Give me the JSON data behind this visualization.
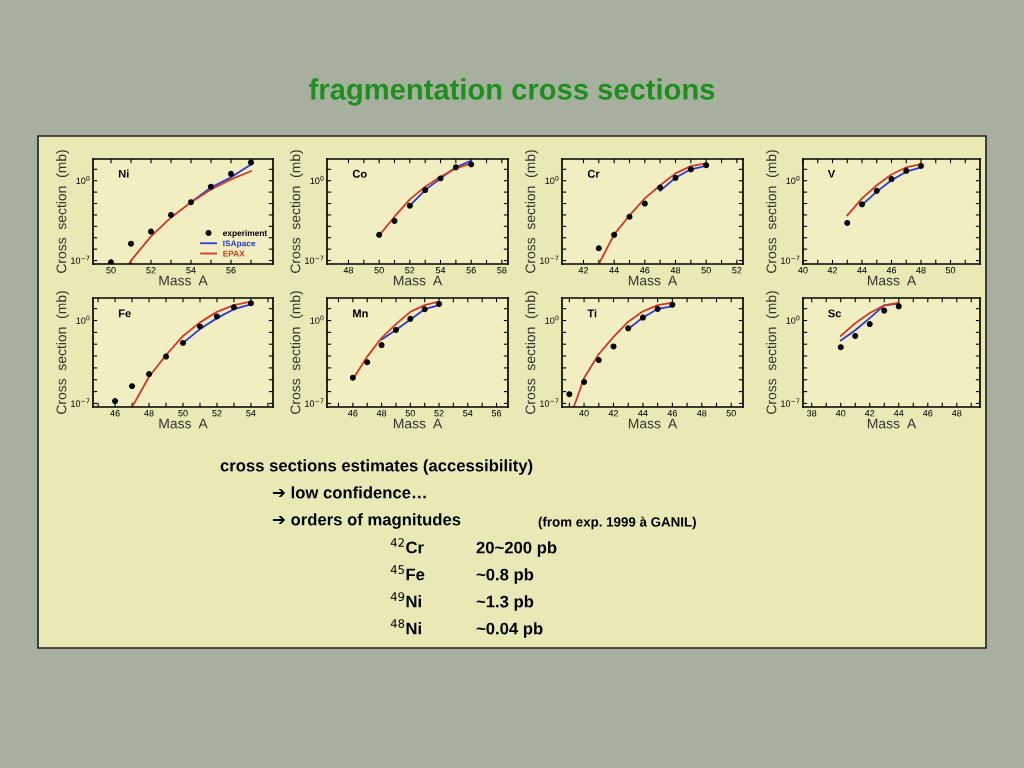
{
  "chart_data": [
    {
      "type": "line",
      "title": "Ni",
      "xlabel": "Mass  A",
      "ylabel": "Cross  section  (mb)",
      "log": "y",
      "legend": "bottom right",
      "xlim": [
        49.1,
        58.1
      ],
      "ylim": [
        5e-08,
        80
      ],
      "xticks": [
        50,
        {
          "value": 51,
          "label": null
        },
        52,
        {
          "value": 53,
          "label": null
        },
        54,
        {
          "value": 55,
          "label": null
        },
        56,
        {
          "value": 57,
          "label": null
        }
      ],
      "yticks": [
        {
          "value": 1e-07,
          "label": "10$^{−7}$"
        },
        {
          "value": 1e-06,
          "label": null
        },
        {
          "value": 1e-05,
          "label": null
        },
        {
          "value": 0.0001,
          "label": null
        },
        {
          "value": 0.001,
          "label": null
        },
        {
          "value": 0.01,
          "label": null
        },
        {
          "value": 0.1,
          "label": null
        },
        {
          "value": 1,
          "label": "10$^{0}$"
        },
        {
          "value": 10,
          "label": null
        }
      ],
      "series": [
        {
          "name": "experiment",
          "type": "scatter",
          "marker": "circle",
          "color": "#000000",
          "x": [
            50,
            51,
            52,
            53,
            54,
            55,
            56,
            57
          ],
          "values": [
            7e-08,
            3e-06,
            3.5e-05,
            0.001,
            0.013,
            0.3,
            4,
            40
          ]
        },
        {
          "name": "ISApace",
          "type": "line",
          "color": "#2a3bd0",
          "x": [
            54,
            55,
            56,
            57
          ],
          "values": [
            0.013,
            0.25,
            2,
            27
          ]
        },
        {
          "name": "EPAX",
          "type": "line",
          "color": "#d03a28",
          "x": [
            50.9,
            51,
            52,
            53,
            54,
            55,
            56,
            57
          ],
          "values": [
            5e-08,
            1e-07,
            1.3e-05,
            0.0006,
            0.013,
            0.17,
            1.3,
            7
          ]
        }
      ]
    },
    {
      "type": "line",
      "title": "Co",
      "xlabel": "Mass  A",
      "ylabel": "Cross  section  (mb)",
      "log": "y",
      "xlim": [
        46.6,
        58.4
      ],
      "ylim": [
        5e-08,
        80
      ],
      "xticks": [
        48,
        {
          "value": 49,
          "label": null
        },
        50,
        {
          "value": 51,
          "label": null
        },
        52,
        {
          "value": 53,
          "label": null
        },
        54,
        {
          "value": 55,
          "label": null
        },
        56,
        {
          "value": 57,
          "label": null
        },
        58
      ],
      "yticks": [
        {
          "value": 1e-07,
          "label": "10$^{−7}$"
        },
        {
          "value": 1e-06,
          "label": null
        },
        {
          "value": 1e-05,
          "label": null
        },
        {
          "value": 0.0001,
          "label": null
        },
        {
          "value": 0.001,
          "label": null
        },
        {
          "value": 0.01,
          "label": null
        },
        {
          "value": 0.1,
          "label": null
        },
        {
          "value": 1,
          "label": "10$^{0}$"
        },
        {
          "value": 10,
          "label": null
        }
      ],
      "series": [
        {
          "type": "scatter",
          "marker": "circle",
          "color": "#000000",
          "x": [
            50,
            51,
            52,
            53,
            54,
            55,
            56
          ],
          "values": [
            1.8e-05,
            0.0003,
            0.0065,
            0.15,
            1.6,
            15,
            27
          ]
        },
        {
          "type": "line",
          "color": "#2a3bd0",
          "x": [
            52,
            53,
            54,
            55,
            56
          ],
          "values": [
            0.0065,
            0.15,
            1.6,
            15,
            56
          ]
        },
        {
          "type": "line",
          "color": "#d03a28",
          "x": [
            50,
            51,
            52,
            53,
            54,
            55,
            56
          ],
          "values": [
            1.6e-05,
            0.0007,
            0.023,
            0.3,
            2.2,
            12,
            33
          ]
        }
      ]
    },
    {
      "type": "line",
      "title": "Cr",
      "xlabel": "Mass  A",
      "ylabel": "Cross  section  (mb)",
      "log": "y",
      "xlim": [
        40.6,
        52.4
      ],
      "ylim": [
        5e-08,
        80
      ],
      "xticks": [
        42,
        {
          "value": 43,
          "label": null
        },
        44,
        {
          "value": 45,
          "label": null
        },
        46,
        {
          "value": 47,
          "label": null
        },
        48,
        {
          "value": 49,
          "label": null
        },
        50,
        {
          "value": 51,
          "label": null
        },
        52
      ],
      "yticks": [
        {
          "value": 1e-07,
          "label": "10$^{−7}$"
        },
        {
          "value": 1e-06,
          "label": null
        },
        {
          "value": 1e-05,
          "label": null
        },
        {
          "value": 0.0001,
          "label": null
        },
        {
          "value": 0.001,
          "label": null
        },
        {
          "value": 0.01,
          "label": null
        },
        {
          "value": 0.1,
          "label": null
        },
        {
          "value": 1,
          "label": "10$^{0}$"
        },
        {
          "value": 10,
          "label": null
        }
      ],
      "series": [
        {
          "type": "scatter",
          "marker": "circle",
          "color": "#000000",
          "x": [
            43,
            44,
            45,
            46,
            47,
            48,
            49,
            50
          ],
          "values": [
            1.2e-06,
            1.8e-05,
            0.0007,
            0.01,
            0.25,
            1.8,
            10,
            23
          ]
        },
        {
          "type": "line",
          "color": "#2a3bd0",
          "x": [
            47,
            48,
            49,
            50
          ],
          "values": [
            0.13,
            1.8,
            10,
            20
          ]
        },
        {
          "type": "line",
          "color": "#d03a28",
          "x": [
            43,
            44,
            45,
            46,
            47,
            48,
            49,
            50
          ],
          "values": [
            5e-08,
            2e-05,
            0.0009,
            0.028,
            0.4,
            4.4,
            19,
            33
          ]
        }
      ]
    },
    {
      "type": "line",
      "title": "V",
      "xlabel": "Mass  A",
      "ylabel": "Cross  section  (mb)",
      "log": "y",
      "xlim": [
        40,
        52
      ],
      "ylim": [
        5e-08,
        80
      ],
      "xticks": [
        40,
        {
          "value": 41,
          "label": null
        },
        42,
        {
          "value": 43,
          "label": null
        },
        44,
        {
          "value": 45,
          "label": null
        },
        46,
        {
          "value": 47,
          "label": null
        },
        48,
        {
          "value": 49,
          "label": null
        },
        50,
        {
          "value": 51,
          "label": null
        }
      ],
      "yticks": [
        {
          "value": 1e-07,
          "label": "10$^{−7}$"
        },
        {
          "value": 1e-06,
          "label": null
        },
        {
          "value": 1e-05,
          "label": null
        },
        {
          "value": 0.0001,
          "label": null
        },
        {
          "value": 0.001,
          "label": null
        },
        {
          "value": 0.01,
          "label": null
        },
        {
          "value": 0.1,
          "label": null
        },
        {
          "value": 1,
          "label": "10$^{0}$"
        },
        {
          "value": 10,
          "label": null
        }
      ],
      "series": [
        {
          "type": "scatter",
          "marker": "circle",
          "color": "#000000",
          "x": [
            43,
            44,
            45,
            46,
            47,
            48
          ],
          "values": [
            0.0002,
            0.0085,
            0.13,
            1.4,
            7.4,
            20
          ]
        },
        {
          "type": "line",
          "color": "#2a3bd0",
          "x": [
            44,
            45,
            46,
            47,
            48
          ],
          "values": [
            0.0074,
            0.11,
            1.1,
            6.2,
            15
          ]
        },
        {
          "type": "line",
          "color": "#d03a28",
          "x": [
            43,
            44,
            45,
            46,
            47,
            48
          ],
          "values": [
            0.0009,
            0.028,
            0.4,
            3.5,
            15,
            29
          ]
        }
      ]
    },
    {
      "type": "line",
      "title": "Fe",
      "xlabel": "Mass  A",
      "ylabel": "Cross  section  (mb)",
      "log": "y",
      "xlim": [
        44.7,
        55.3
      ],
      "ylim": [
        5e-08,
        80
      ],
      "xticks": [
        {
          "value": 45,
          "label": null
        },
        46,
        {
          "value": 47,
          "label": null
        },
        48,
        {
          "value": 49,
          "label": null
        },
        50,
        {
          "value": 51,
          "label": null
        },
        52,
        {
          "value": 53,
          "label": null
        },
        54,
        {
          "value": 55,
          "label": null
        }
      ],
      "yticks": [
        {
          "value": 1e-07,
          "label": "10$^{−7}$"
        },
        {
          "value": 1e-06,
          "label": null
        },
        {
          "value": 1e-05,
          "label": null
        },
        {
          "value": 0.0001,
          "label": null
        },
        {
          "value": 0.001,
          "label": null
        },
        {
          "value": 0.01,
          "label": null
        },
        {
          "value": 0.1,
          "label": null
        },
        {
          "value": 1,
          "label": "10$^{0}$"
        },
        {
          "value": 10,
          "label": null
        }
      ],
      "series": [
        {
          "type": "scatter",
          "marker": "circle",
          "color": "#000000",
          "x": [
            46,
            47,
            48,
            49,
            50,
            51,
            52,
            53,
            54
          ],
          "values": [
            1.6e-07,
            2.9e-06,
            3e-05,
            0.0009,
            0.013,
            0.32,
            2.2,
            13,
            29
          ]
        },
        {
          "type": "line",
          "color": "#2a3bd0",
          "x": [
            50,
            51,
            52,
            53,
            54
          ],
          "values": [
            0.013,
            0.19,
            1.6,
            9,
            23
          ]
        },
        {
          "type": "line",
          "color": "#d03a28",
          "x": [
            47,
            48,
            49,
            50,
            51,
            52,
            53,
            54
          ],
          "values": [
            5e-08,
            1.8e-05,
            0.0012,
            0.05,
            0.7,
            5.4,
            20,
            40
          ]
        }
      ]
    },
    {
      "type": "line",
      "title": "Mn",
      "xlabel": "Mass  A",
      "ylabel": "Cross  section  (mb)",
      "log": "y",
      "xlim": [
        44.2,
        56.8
      ],
      "ylim": [
        5e-08,
        80
      ],
      "xticks": [
        {
          "value": 45,
          "label": null
        },
        46,
        {
          "value": 47,
          "label": null
        },
        48,
        {
          "value": 49,
          "label": null
        },
        50,
        {
          "value": 51,
          "label": null
        },
        52,
        {
          "value": 53,
          "label": null
        },
        54,
        {
          "value": 55,
          "label": null
        },
        56
      ],
      "yticks": [
        {
          "value": 1e-07,
          "label": "10$^{−7}$"
        },
        {
          "value": 1e-06,
          "label": null
        },
        {
          "value": 1e-05,
          "label": null
        },
        {
          "value": 0.0001,
          "label": null
        },
        {
          "value": 0.001,
          "label": null
        },
        {
          "value": 0.01,
          "label": null
        },
        {
          "value": 0.1,
          "label": null
        },
        {
          "value": 1,
          "label": "10$^{0}$"
        },
        {
          "value": 10,
          "label": null
        }
      ],
      "series": [
        {
          "type": "scatter",
          "marker": "circle",
          "color": "#000000",
          "x": [
            46,
            47,
            48,
            49,
            50,
            51,
            52
          ],
          "values": [
            1.5e-05,
            0.0003,
            0.0085,
            0.16,
            1.4,
            9,
            25
          ]
        },
        {
          "type": "line",
          "color": "#2a3bd0",
          "x": [
            48,
            49,
            50,
            51,
            52
          ],
          "values": [
            0.025,
            0.16,
            1.2,
            9,
            20
          ]
        },
        {
          "type": "line",
          "color": "#d03a28",
          "x": [
            46,
            47,
            48,
            49,
            50,
            51,
            52
          ],
          "values": [
            1.1e-05,
            0.0009,
            0.035,
            0.5,
            5.4,
            20,
            40
          ]
        }
      ]
    },
    {
      "type": "line",
      "title": "Ti",
      "xlabel": "Mass  A",
      "ylabel": "Cross  section  (mb)",
      "log": "y",
      "xlim": [
        38.5,
        50.8
      ],
      "ylim": [
        5e-08,
        80
      ],
      "xticks": [
        {
          "value": 39,
          "label": null
        },
        40,
        {
          "value": 41,
          "label": null
        },
        42,
        {
          "value": 43,
          "label": null
        },
        44,
        {
          "value": 45,
          "label": null
        },
        46,
        {
          "value": 47,
          "label": null
        },
        48,
        {
          "value": 49,
          "label": null
        },
        50
      ],
      "yticks": [
        {
          "value": 1e-07,
          "label": "10$^{−7}$"
        },
        {
          "value": 1e-06,
          "label": null
        },
        {
          "value": 1e-05,
          "label": null
        },
        {
          "value": 0.0001,
          "label": null
        },
        {
          "value": 0.001,
          "label": null
        },
        {
          "value": 0.01,
          "label": null
        },
        {
          "value": 0.1,
          "label": null
        },
        {
          "value": 1,
          "label": "10$^{0}$"
        },
        {
          "value": 10,
          "label": null
        }
      ],
      "series": [
        {
          "type": "scatter",
          "marker": "circle",
          "color": "#000000",
          "x": [
            39,
            40,
            41,
            42,
            43,
            44,
            45,
            46
          ],
          "values": [
            6e-07,
            6.5e-06,
            0.00046,
            0.0065,
            0.22,
            1.8,
            9.5,
            22
          ]
        },
        {
          "type": "line",
          "color": "#2a3bd0",
          "x": [
            43,
            44,
            45,
            46
          ],
          "values": [
            0.19,
            1.8,
            9.5,
            16
          ]
        },
        {
          "type": "line",
          "color": "#d03a28",
          "x": [
            39.3,
            40,
            41,
            42,
            43,
            44,
            45,
            46
          ],
          "values": [
            5e-08,
            1.4e-05,
            0.0015,
            0.042,
            0.8,
            6,
            20,
            32
          ]
        }
      ]
    },
    {
      "type": "line",
      "title": "Sc",
      "xlabel": "Mass  A",
      "ylabel": "Cross  section  (mb)",
      "log": "y",
      "xlim": [
        37.4,
        49.6
      ],
      "ylim": [
        5e-08,
        80
      ],
      "xticks": [
        38,
        {
          "value": 39,
          "label": null
        },
        40,
        {
          "value": 41,
          "label": null
        },
        42,
        {
          "value": 43,
          "label": null
        },
        44,
        {
          "value": 45,
          "label": null
        },
        46,
        {
          "value": 47,
          "label": null
        },
        48,
        {
          "value": 49,
          "label": null
        }
      ],
      "yticks": [
        {
          "value": 1e-07,
          "label": "10$^{−7}$"
        },
        {
          "value": 1e-06,
          "label": null
        },
        {
          "value": 1e-05,
          "label": null
        },
        {
          "value": 0.0001,
          "label": null
        },
        {
          "value": 0.001,
          "label": null
        },
        {
          "value": 0.01,
          "label": null
        },
        {
          "value": 0.1,
          "label": null
        },
        {
          "value": 1,
          "label": "10$^{0}$"
        },
        {
          "value": 10,
          "label": null
        }
      ],
      "series": [
        {
          "type": "scatter",
          "marker": "circle",
          "color": "#000000",
          "x": [
            40,
            41,
            42,
            43,
            44
          ],
          "values": [
            0.0056,
            0.05,
            0.5,
            7,
            16
          ]
        },
        {
          "type": "line",
          "color": "#2a3bd0",
          "x": [
            40,
            41,
            42,
            43,
            44
          ],
          "values": [
            0.021,
            0.15,
            1.6,
            19,
            28
          ]
        },
        {
          "type": "line",
          "color": "#d03a28",
          "x": [
            40,
            41,
            42,
            43,
            44
          ],
          "values": [
            0.05,
            0.6,
            4.3,
            19,
            32
          ]
        }
      ]
    },
    {
      "type": "other",
      "title": "fragmentation cross sections",
      "annotations": [
        "cross sections estimates (accessibility)",
        "➔ low confidence…",
        "➔ orders of magnitudes",
        "(from exp. 1999 à GANIL)",
        "$^{42}$Cr",
        "20~200 pb",
        "$^{45}$Fe",
        "~0.8 pb",
        "$^{49}$Ni",
        "~1.3 pb",
        "$^{48}$Ni",
        "~0.04 pb"
      ]
    }
  ]
}
